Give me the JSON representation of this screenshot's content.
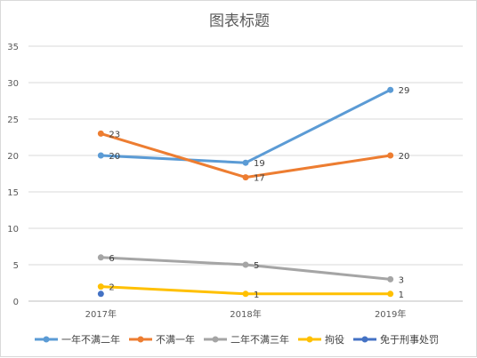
{
  "chart_data": {
    "type": "line",
    "title": "图表标题",
    "xlabel": "",
    "ylabel": "",
    "categories": [
      "2017年",
      "2018年",
      "2019年"
    ],
    "ylim": [
      0,
      35
    ],
    "yticks": [
      0,
      5,
      10,
      15,
      20,
      25,
      30,
      35
    ],
    "grid": true,
    "legend_position": "bottom",
    "series": [
      {
        "name": "一年不满二年",
        "color": "#5b9bd5",
        "values": [
          20,
          19,
          29
        ],
        "labels": [
          "20",
          "19",
          "29"
        ]
      },
      {
        "name": "不满一年",
        "color": "#ed7d31",
        "values": [
          23,
          17,
          20
        ],
        "labels": [
          "23",
          "17",
          "20"
        ]
      },
      {
        "name": "二年不满三年",
        "color": "#a5a5a5",
        "values": [
          6,
          5,
          3
        ],
        "labels": [
          "6",
          "5",
          "3"
        ]
      },
      {
        "name": "拘役",
        "color": "#ffc000",
        "values": [
          2,
          1,
          1
        ],
        "labels": [
          "2",
          "1",
          "1"
        ]
      },
      {
        "name": "免于刑事处罚",
        "color": "#4472c4",
        "values": [
          1,
          null,
          null
        ],
        "labels": [
          "",
          "",
          ""
        ]
      }
    ]
  }
}
